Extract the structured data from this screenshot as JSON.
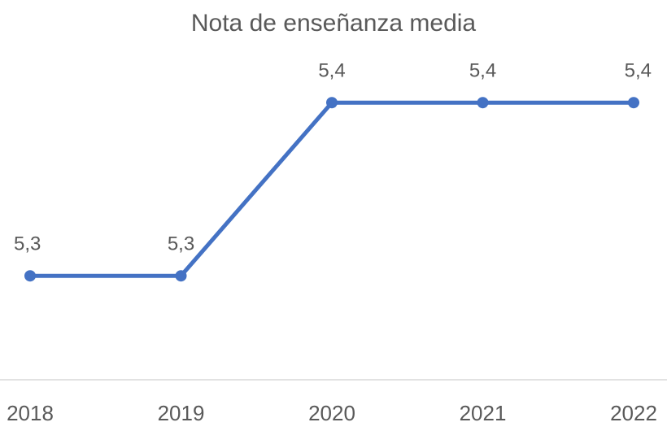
{
  "chart_data": {
    "type": "line",
    "title": "Nota de enseñanza media",
    "categories": [
      "2018",
      "2019",
      "2020",
      "2021",
      "2022"
    ],
    "series": [
      {
        "name": "Nota de enseñanza media",
        "color": "#4472c4",
        "values": [
          5.3,
          5.3,
          5.4,
          5.4,
          5.4
        ],
        "value_labels": [
          "5,3",
          "5,3",
          "5,4",
          "5,4",
          "5,4"
        ]
      }
    ],
    "ylim": [
      5.24,
      5.44
    ]
  }
}
